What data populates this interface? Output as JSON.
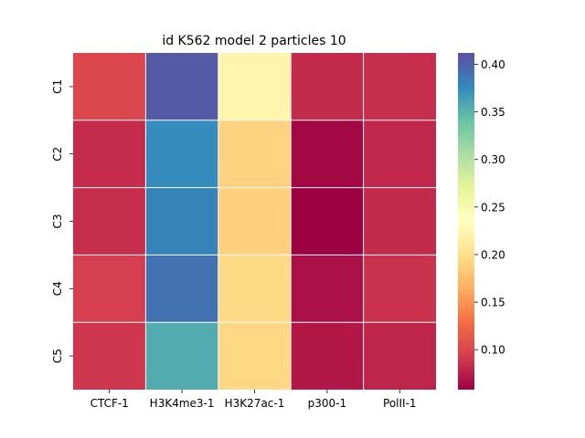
{
  "chart_data": {
    "type": "heatmap",
    "title": "id K562 model 2 particles 10",
    "xlabel": "",
    "ylabel": "",
    "x_categories": [
      "CTCF-1",
      "H3K4me3-1",
      "H3K27ac-1",
      "p300-1",
      "PolII-1"
    ],
    "y_categories": [
      "C1",
      "C2",
      "C3",
      "C4",
      "C5"
    ],
    "values": [
      [
        0.1,
        0.405,
        0.222,
        0.082,
        0.084
      ],
      [
        0.083,
        0.375,
        0.19,
        0.062,
        0.08
      ],
      [
        0.084,
        0.38,
        0.188,
        0.058,
        0.082
      ],
      [
        0.094,
        0.39,
        0.195,
        0.066,
        0.086
      ],
      [
        0.089,
        0.355,
        0.194,
        0.07,
        0.079
      ]
    ],
    "colorbar": {
      "min": 0.058,
      "max": 0.412,
      "ticks": [
        0.1,
        0.15,
        0.2,
        0.25,
        0.3,
        0.35,
        0.4
      ],
      "tick_labels": [
        "0.10",
        "0.15",
        "0.20",
        "0.25",
        "0.30",
        "0.35",
        "0.40"
      ]
    },
    "colormap": "Spectral",
    "colormap_stops": [
      "#9e0142",
      "#d53e4f",
      "#f46d43",
      "#fdae61",
      "#fee08b",
      "#ffffbf",
      "#e6f598",
      "#abdda4",
      "#66c2a5",
      "#3288bd",
      "#5e4fa2"
    ],
    "grid_line_color": "#ffffff"
  }
}
